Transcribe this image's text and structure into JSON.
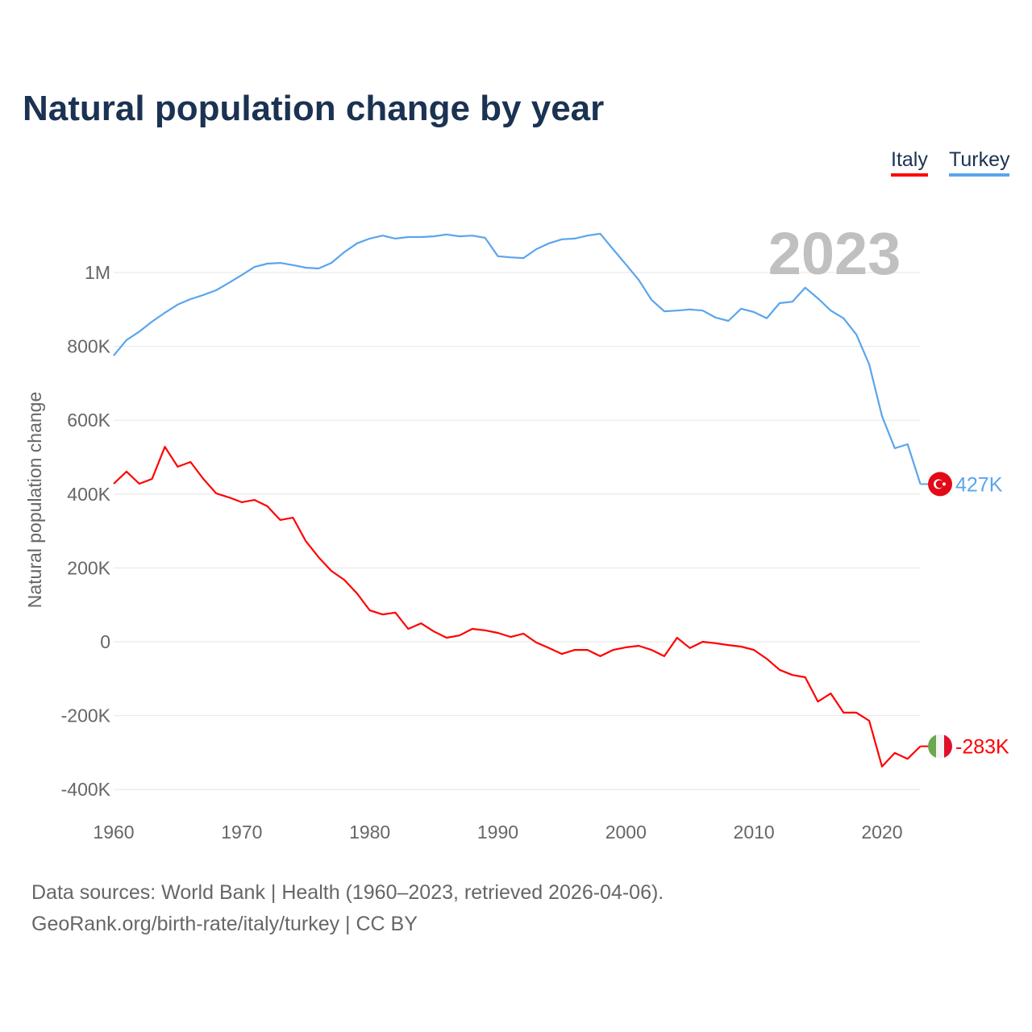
{
  "title": "Natural population change by year",
  "legend": [
    {
      "label": "Italy",
      "color": "#ff0000"
    },
    {
      "label": "Turkey",
      "color": "#5aa5ec"
    }
  ],
  "year_watermark": "2023",
  "footer": {
    "line1": "Data sources: World Bank | Health (1960–2023, retrieved 2026-04-06).",
    "line2": "GeoRank.org/birth-rate/italy/turkey | CC BY"
  },
  "chart_data": {
    "type": "line",
    "title": "Natural population change by year",
    "xlabel": "",
    "ylabel": "Natural population change",
    "xlim": [
      1960,
      2023
    ],
    "ylim": [
      -450000,
      1150000
    ],
    "x_ticks": [
      1960,
      1970,
      1980,
      1990,
      2000,
      2010,
      2020
    ],
    "x_tick_labels": [
      "1960",
      "1970",
      "1980",
      "1990",
      "2000",
      "2010",
      "2020"
    ],
    "y_ticks": [
      -400000,
      -200000,
      0,
      200000,
      400000,
      600000,
      800000,
      1000000
    ],
    "y_tick_labels": [
      "-400K",
      "-200K",
      "0",
      "200K",
      "400K",
      "600K",
      "800K",
      "1M"
    ],
    "grid": true,
    "legend_position": "top-right",
    "x_start": 1960,
    "series": [
      {
        "name": "Turkey",
        "color": "#5aa5ec",
        "end_label": "427K",
        "values": [
          775000,
          817000,
          840000,
          867000,
          891000,
          913000,
          928000,
          939000,
          952000,
          972000,
          993000,
          1015000,
          1024000,
          1026000,
          1020000,
          1013000,
          1011000,
          1026000,
          1055000,
          1079000,
          1092000,
          1100000,
          1092000,
          1096000,
          1096000,
          1098000,
          1103000,
          1098000,
          1100000,
          1094000,
          1044000,
          1041000,
          1039000,
          1063000,
          1079000,
          1090000,
          1092000,
          1100000,
          1105000,
          1063000,
          1022000,
          980000,
          926000,
          895000,
          897000,
          900000,
          897000,
          878000,
          869000,
          902000,
          893000,
          876000,
          917000,
          921000,
          959000,
          930000,
          897000,
          876000,
          832000,
          751000,
          611000,
          524000,
          535000,
          427000
        ]
      },
      {
        "name": "Italy",
        "color": "#ff0000",
        "end_label": "-283K",
        "values": [
          428000,
          461000,
          428000,
          441000,
          528000,
          474000,
          487000,
          441000,
          402000,
          391000,
          378000,
          384000,
          367000,
          330000,
          336000,
          273000,
          229000,
          192000,
          168000,
          131000,
          85000,
          74000,
          79000,
          35000,
          50000,
          28000,
          11000,
          17000,
          35000,
          31000,
          24000,
          13000,
          22000,
          -2000,
          -17000,
          -33000,
          -22000,
          -22000,
          -39000,
          -22000,
          -15000,
          -11000,
          -22000,
          -39000,
          11000,
          -17000,
          0,
          -4000,
          -9000,
          -13000,
          -22000,
          -46000,
          -76000,
          -90000,
          -96000,
          -162000,
          -140000,
          -192000,
          -192000,
          -214000,
          -338000,
          -301000,
          -317000,
          -283000
        ]
      }
    ]
  }
}
